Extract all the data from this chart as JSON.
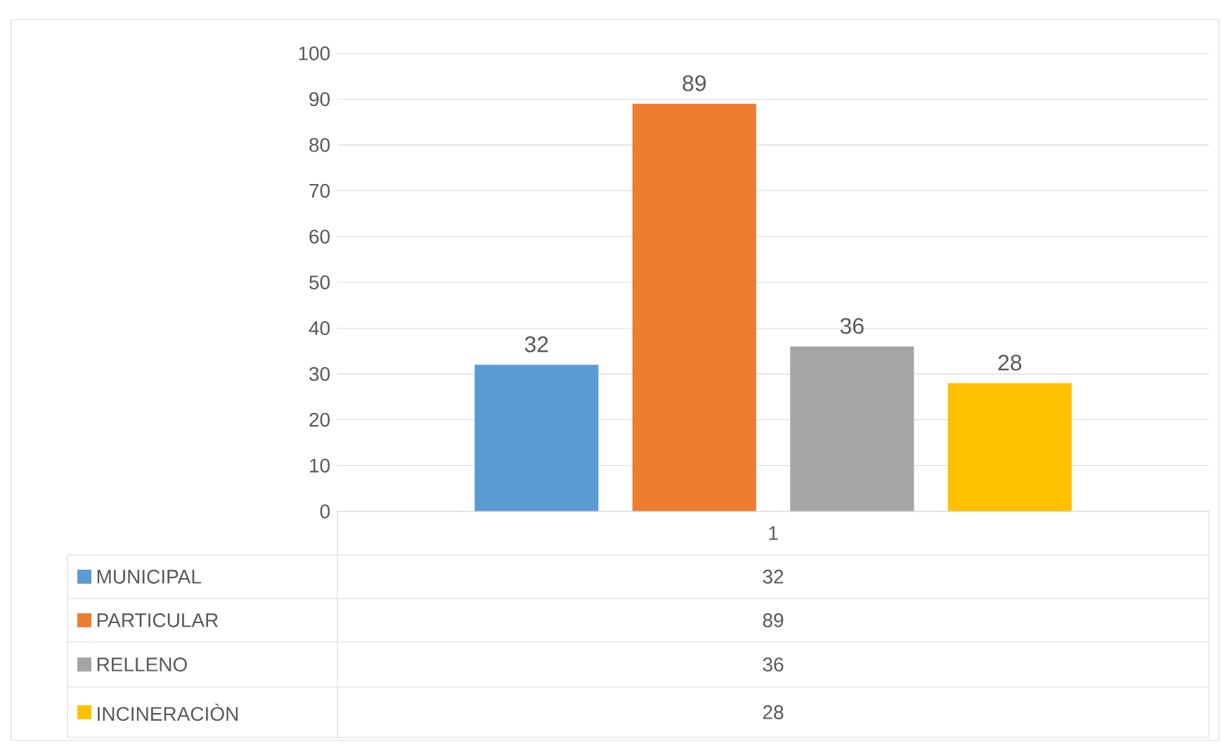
{
  "chart_data": {
    "type": "bar",
    "categories": [
      "1"
    ],
    "series": [
      {
        "name": "MUNICIPAL",
        "color": "#5b9bd5",
        "values": [
          32
        ]
      },
      {
        "name": "PARTICULAR",
        "color": "#ed7d31",
        "values": [
          89
        ]
      },
      {
        "name": "RELLENO",
        "color": "#a5a5a5",
        "values": [
          36
        ]
      },
      {
        "name": "INCINERACIÒN",
        "color": "#ffc000",
        "values": [
          28
        ]
      }
    ],
    "annotations": [
      "32",
      "89",
      "36",
      "28"
    ],
    "ylim": [
      0,
      100
    ],
    "yticks": [
      0,
      10,
      20,
      30,
      40,
      50,
      60,
      70,
      80,
      90,
      100
    ],
    "grid": "y",
    "legend": "bottom",
    "data_labels": true
  }
}
